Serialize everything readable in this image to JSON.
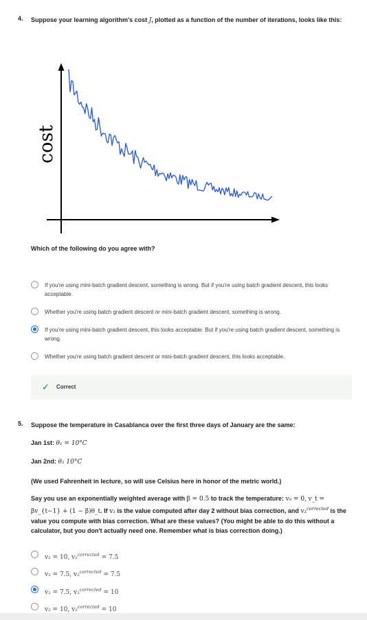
{
  "q4": {
    "number": "4.",
    "prompt_pre": "Suppose your learning algorithm's cost",
    "prompt_var": "J",
    "prompt_post": ", plotted as a function of the number of iterations, looks like this:",
    "figure": {
      "ylabel": "cost",
      "line_color": "#2255ee"
    },
    "sub_question": "Which of the following do you agree with?",
    "options": [
      {
        "label": "If you're using mini-batch gradient descent, something is wrong. But if you're using batch gradient descent, this looks acceptable.",
        "selected": false
      },
      {
        "label": "Whether you're using batch gradient descent or mini-batch gradient descent, something is wrong.",
        "selected": false
      },
      {
        "label": "If you're using mini-batch gradient descent, this looks acceptable. But if you're using batch gradient descent, something is wrong.",
        "selected": true
      },
      {
        "label": "Whether you're using batch gradient descent or mini-batch gradient descent, this looks acceptable.",
        "selected": false
      }
    ],
    "feedback": "Correct"
  },
  "q5": {
    "number": "5.",
    "prompt": "Suppose the temperature in Casablanca over the first three days of January are the same:",
    "jan1_label": "Jan 1st:",
    "jan1_math": "θ₁ = 10°C",
    "jan2_label": "Jan 2nd:",
    "jan2_math": "θ₂ 10°C",
    "note": "(We used Fahrenheit in lecture, so will use Celsius here in honor of the metric world.)",
    "body_1": "Say you use an exponentially weighted average with",
    "body_beta": "β = 0.5",
    "body_2": "to track the temperature:",
    "body_v0": "v₀ = 0,",
    "body_vt": "v_t = βv_{t−1} + (1 − β)θ_t",
    "body_3": ". If",
    "body_v2": "v₂",
    "body_4": "is the value computed after day 2 without bias correction, and",
    "body_v2c": "v₂",
    "body_sup": "corrected",
    "body_5": "is the value you compute with bias correction. What are these values? (You might be able to do this without a calculator, but you don't actually need one. Remember what is bias correction doing.)",
    "options": [
      {
        "v2": "v₂ = 10, v₂",
        "sup": "corrected",
        "tail": "= 7.5",
        "selected": false
      },
      {
        "v2": "v₂ = 7.5, v₂",
        "sup": "corrected",
        "tail": "= 7.5",
        "selected": false
      },
      {
        "v2": "v₂ = 7.5, v₂",
        "sup": "corrected",
        "tail": "= 10",
        "selected": true
      },
      {
        "v2": "v₂ = 10, v₂",
        "sup": "corrected",
        "tail": "= 10",
        "selected": false
      }
    ]
  }
}
